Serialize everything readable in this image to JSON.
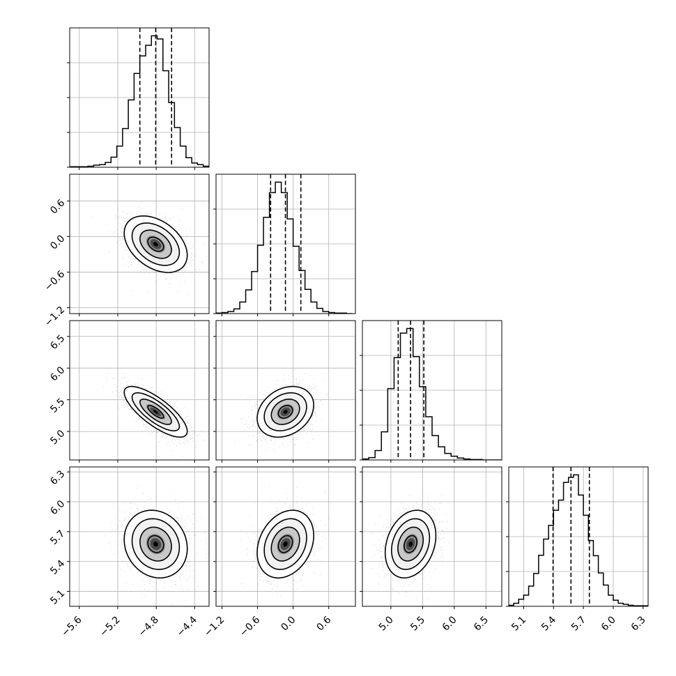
{
  "chart_data": {
    "type": "corner",
    "panel_grid": 4,
    "grid": true,
    "histogram_type": "step",
    "scatter_color": "#808080",
    "contour_color": "#000000",
    "density_fill": [
      "#ffffff",
      "#f2f2f2",
      "#c8c8c8",
      "#8e8e8e",
      "#4a4a4a",
      "#000000"
    ],
    "parameters": [
      {
        "range": [
          -5.7,
          -4.25
        ],
        "x_ticks": [
          "-5.6",
          "-5.2",
          "-4.8",
          "-4.4"
        ],
        "x_tick_values": [
          -5.6,
          -5.2,
          -4.8,
          -4.4
        ],
        "quantiles": [
          -4.97,
          -4.805,
          -4.64
        ],
        "hist_centers": [
          -5.66,
          -5.6,
          -5.54,
          -5.48,
          -5.42,
          -5.36,
          -5.3,
          -5.24,
          -5.18,
          -5.12,
          -5.06,
          -5.0,
          -4.94,
          -4.88,
          -4.82,
          -4.76,
          -4.7,
          -4.64,
          -4.58,
          -4.52,
          -4.46,
          -4.4,
          -4.34,
          -4.28
        ],
        "hist_counts": [
          1,
          1,
          1,
          2,
          4,
          5,
          9,
          19,
          40,
          73,
          127,
          177,
          210,
          230,
          248,
          242,
          182,
          122,
          75,
          40,
          18,
          8,
          5,
          2
        ]
      },
      {
        "range": [
          -1.3,
          1.05
        ],
        "x_ticks": [
          "-1.2",
          "-0.6",
          "0.0",
          "0.6"
        ],
        "x_tick_values": [
          -1.2,
          -0.6,
          0.0,
          0.6
        ],
        "y_ticks": [
          "0.6",
          "0.0",
          "-0.6",
          "-1.2"
        ],
        "y_tick_values": [
          0.6,
          0.0,
          -0.6,
          -1.2
        ],
        "quantiles": [
          -0.38,
          -0.13,
          0.13
        ],
        "hist_centers": [
          -1.25,
          -1.15,
          -1.05,
          -0.95,
          -0.85,
          -0.75,
          -0.65,
          -0.55,
          -0.45,
          -0.35,
          -0.25,
          -0.15,
          -0.05,
          0.05,
          0.15,
          0.25,
          0.35,
          0.45,
          0.55,
          0.65,
          0.75,
          0.85,
          0.95
        ],
        "hist_counts": [
          1,
          2,
          4,
          9,
          22,
          45,
          80,
          130,
          183,
          230,
          250,
          230,
          180,
          128,
          82,
          46,
          22,
          10,
          4,
          2,
          1,
          1,
          0
        ]
      },
      {
        "range": [
          4.55,
          6.75
        ],
        "x_ticks": [
          "5.0",
          "5.5",
          "6.0",
          "6.5"
        ],
        "x_tick_values": [
          5.0,
          5.5,
          6.0,
          6.5
        ],
        "y_ticks": [
          "6.5",
          "6.0",
          "5.5",
          "5.0"
        ],
        "y_tick_values": [
          6.5,
          6.0,
          5.5,
          5.0
        ],
        "quantiles": [
          5.115,
          5.31,
          5.52
        ],
        "hist_centers": [
          4.6,
          4.7,
          4.8,
          4.9,
          5.0,
          5.1,
          5.2,
          5.3,
          5.4,
          5.5,
          5.6,
          5.7,
          5.8,
          5.9,
          6.0,
          6.1,
          6.2,
          6.3,
          6.4,
          6.5,
          6.6,
          6.7
        ],
        "hist_counts": [
          2,
          5,
          20,
          60,
          152,
          218,
          270,
          280,
          220,
          156,
          92,
          52,
          28,
          14,
          8,
          4,
          2,
          1,
          1,
          0,
          0,
          0
        ]
      },
      {
        "range": [
          4.95,
          6.35
        ],
        "x_ticks": [
          "5.1",
          "5.4",
          "5.7",
          "6.0",
          "6.3"
        ],
        "x_tick_values": [
          5.1,
          5.4,
          5.7,
          6.0,
          6.3
        ],
        "y_ticks": [
          "6.3",
          "6.0",
          "5.7",
          "5.4",
          "5.1"
        ],
        "y_tick_values": [
          6.3,
          6.0,
          5.7,
          5.4,
          5.1
        ],
        "quantiles": [
          5.395,
          5.575,
          5.76
        ],
        "hist_centers": [
          4.975,
          5.025,
          5.075,
          5.125,
          5.175,
          5.225,
          5.275,
          5.325,
          5.375,
          5.425,
          5.475,
          5.525,
          5.575,
          5.625,
          5.675,
          5.725,
          5.775,
          5.825,
          5.875,
          5.925,
          5.975,
          6.025,
          6.075,
          6.125,
          6.175,
          6.225,
          6.275,
          6.325
        ],
        "hist_counts": [
          2,
          6,
          14,
          22,
          40,
          65,
          101,
          133,
          160,
          190,
          210,
          245,
          255,
          260,
          220,
          180,
          130,
          100,
          66,
          42,
          22,
          12,
          6,
          4,
          2,
          1,
          1,
          1
        ]
      }
    ],
    "pairs": [
      {
        "x": 0,
        "y": 1,
        "cov": [
          [
            0.02689,
            -0.0153
          ],
          [
            -0.0153,
            0.0568
          ]
        ]
      },
      {
        "x": 0,
        "y": 2,
        "cov": [
          [
            0.02689,
            -0.0252
          ],
          [
            -0.0252,
            0.04
          ]
        ]
      },
      {
        "x": 1,
        "y": 2,
        "cov": [
          [
            0.0568,
            0.0124
          ],
          [
            0.0124,
            0.04
          ]
        ]
      },
      {
        "x": 0,
        "y": 3,
        "cov": [
          [
            0.02689,
            -0.0037
          ],
          [
            -0.0037,
            0.0289
          ]
        ]
      },
      {
        "x": 1,
        "y": 3,
        "cov": [
          [
            0.0568,
            0.0103
          ],
          [
            0.0103,
            0.0289
          ]
        ]
      },
      {
        "x": 2,
        "y": 3,
        "cov": [
          [
            0.04,
            0.0085
          ],
          [
            0.0085,
            0.0289
          ]
        ]
      }
    ]
  }
}
